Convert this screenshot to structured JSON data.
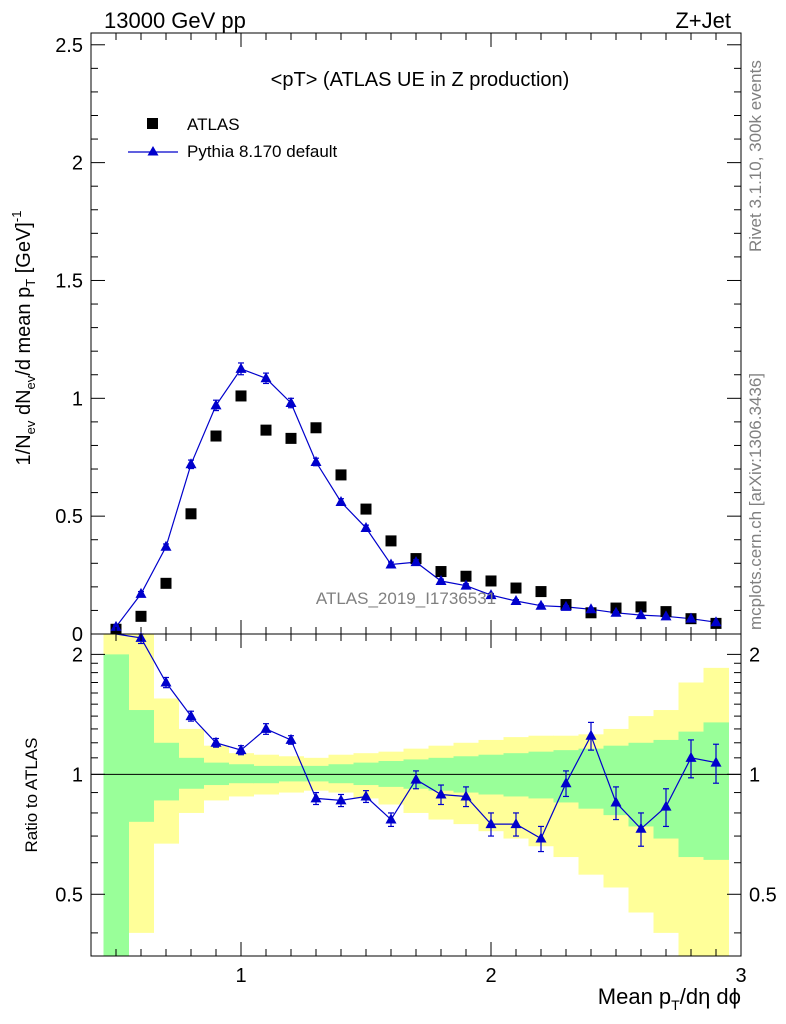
{
  "header": {
    "left": "13000 GeV pp",
    "right": "Z+Jet"
  },
  "side_labels": {
    "rivet": "Rivet 3.1.10,  300k events",
    "mcplots": "mcplots.cern.ch [arXiv:1306.3436]"
  },
  "watermark": "ATLAS_2019_I1736531",
  "chart_data": [
    {
      "type": "scatter",
      "panel": "main",
      "title": "<pT> (ATLAS UE in Z production)",
      "ylabel": "1/N_ev dN_ev/d mean p_T [GeV]^-1",
      "xlim": [
        0.4,
        3.0
      ],
      "ylim": [
        0,
        2.55
      ],
      "xticks": [
        1,
        2,
        3
      ],
      "yticks": [
        0,
        0.5,
        1,
        1.5,
        2,
        2.5
      ],
      "ytick_labels": [
        "0",
        "0.5",
        "1",
        "1.5",
        "2",
        "2.5"
      ],
      "legend": {
        "placement": "top-left",
        "entries": [
          "ATLAS",
          "Pythia 8.170 default"
        ]
      },
      "x": [
        0.5,
        0.6,
        0.7,
        0.8,
        0.9,
        1.0,
        1.1,
        1.2,
        1.3,
        1.4,
        1.5,
        1.6,
        1.7,
        1.8,
        1.9,
        2.0,
        2.1,
        2.2,
        2.3,
        2.4,
        2.5,
        2.6,
        2.7,
        2.8,
        2.9
      ],
      "series": [
        {
          "name": "ATLAS",
          "color": "#000000",
          "marker": "square",
          "values": [
            0.02,
            0.075,
            0.215,
            0.51,
            0.84,
            1.01,
            0.865,
            0.83,
            0.875,
            0.675,
            0.53,
            0.395,
            0.32,
            0.265,
            0.245,
            0.225,
            0.195,
            0.18,
            0.125,
            0.09,
            0.11,
            0.115,
            0.095,
            0.065,
            0.045
          ]
        },
        {
          "name": "Pythia 8.170 default",
          "color": "#0000cc",
          "marker": "triangle",
          "values": [
            0.03,
            0.17,
            0.37,
            0.72,
            0.97,
            1.125,
            1.085,
            0.98,
            0.73,
            0.56,
            0.45,
            0.295,
            0.305,
            0.225,
            0.205,
            0.165,
            0.14,
            0.12,
            0.115,
            0.105,
            0.09,
            0.08,
            0.075,
            0.065,
            0.05
          ],
          "errors": [
            0.008,
            0.01,
            0.012,
            0.018,
            0.022,
            0.025,
            0.022,
            0.02,
            0.016,
            0.014,
            0.012,
            0.01,
            0.01,
            0.008,
            0.008,
            0.007,
            0.006,
            0.006,
            0.005,
            0.005,
            0.005,
            0.004,
            0.004,
            0.004,
            0.004
          ]
        }
      ]
    },
    {
      "type": "line",
      "panel": "ratio",
      "ylabel": "Ratio to ATLAS",
      "xlabel": "Mean p_T/dη dϕ",
      "xlim": [
        0.4,
        3.0
      ],
      "ylim": [
        0.35,
        2.25
      ],
      "yscale": "log",
      "xticks": [
        1,
        2,
        3
      ],
      "xtick_labels": [
        "1",
        "2",
        "3"
      ],
      "yticks": [
        0.5,
        1,
        2
      ],
      "ytick_labels": [
        "0.5",
        "1",
        "2"
      ],
      "reference_line": 1,
      "bin_edges": [
        0.45,
        0.55,
        0.65,
        0.75,
        0.85,
        0.95,
        1.05,
        1.15,
        1.25,
        1.35,
        1.45,
        1.55,
        1.65,
        1.75,
        1.85,
        1.95,
        2.05,
        2.15,
        2.25,
        2.35,
        2.45,
        2.55,
        2.65,
        2.75,
        2.85,
        2.95
      ],
      "bands": [
        {
          "level": "outer",
          "color": "#ffff99",
          "upper": [
            2.3,
            2.3,
            1.55,
            1.3,
            1.18,
            1.13,
            1.12,
            1.11,
            1.1,
            1.12,
            1.13,
            1.14,
            1.16,
            1.18,
            1.2,
            1.22,
            1.24,
            1.25,
            1.25,
            1.26,
            1.3,
            1.4,
            1.45,
            1.7,
            1.85
          ],
          "lower": [
            0.33,
            0.4,
            0.67,
            0.8,
            0.86,
            0.88,
            0.89,
            0.9,
            0.91,
            0.9,
            0.87,
            0.84,
            0.8,
            0.77,
            0.75,
            0.72,
            0.69,
            0.66,
            0.62,
            0.56,
            0.52,
            0.45,
            0.4,
            0.33,
            0.33
          ]
        },
        {
          "level": "inner",
          "color": "#99ff99",
          "upper": [
            2.0,
            1.45,
            1.2,
            1.1,
            1.07,
            1.06,
            1.05,
            1.05,
            1.05,
            1.06,
            1.07,
            1.08,
            1.09,
            1.1,
            1.11,
            1.12,
            1.13,
            1.14,
            1.15,
            1.16,
            1.18,
            1.2,
            1.22,
            1.28,
            1.35
          ],
          "lower": [
            0.33,
            0.76,
            0.86,
            0.92,
            0.94,
            0.95,
            0.95,
            0.96,
            0.96,
            0.95,
            0.94,
            0.93,
            0.92,
            0.91,
            0.9,
            0.89,
            0.88,
            0.87,
            0.85,
            0.82,
            0.79,
            0.74,
            0.69,
            0.62,
            0.61
          ]
        }
      ],
      "x": [
        0.6,
        0.7,
        0.8,
        0.9,
        1.0,
        1.1,
        1.2,
        1.3,
        1.4,
        1.5,
        1.6,
        1.7,
        1.8,
        1.9,
        2.0,
        2.1,
        2.2,
        2.3,
        2.4,
        2.5,
        2.6,
        2.7,
        2.8,
        2.9
      ],
      "series": [
        {
          "name": "Pythia 8.170 default",
          "color": "#0000cc",
          "values": [
            2.2,
            1.7,
            1.4,
            1.2,
            1.15,
            1.3,
            1.22,
            0.87,
            0.86,
            0.88,
            0.77,
            0.97,
            0.89,
            0.88,
            0.75,
            0.75,
            0.69,
            0.95,
            1.25,
            0.85,
            0.73,
            0.83,
            1.1,
            1.07
          ],
          "errors": [
            0.07,
            0.05,
            0.04,
            0.03,
            0.03,
            0.04,
            0.03,
            0.03,
            0.03,
            0.03,
            0.03,
            0.05,
            0.05,
            0.05,
            0.05,
            0.05,
            0.05,
            0.07,
            0.1,
            0.08,
            0.07,
            0.09,
            0.12,
            0.12
          ]
        }
      ]
    }
  ]
}
